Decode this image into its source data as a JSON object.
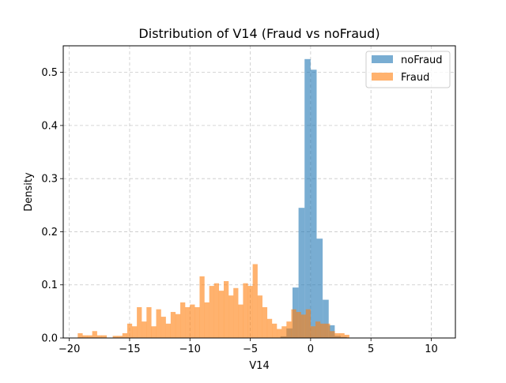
{
  "chart_data": {
    "type": "bar",
    "title": "Distribution of V14 (Fraud vs noFraud)",
    "xlabel": "V14",
    "ylabel": "Density",
    "xlim": [
      -20.5,
      12.0
    ],
    "ylim": [
      0,
      0.55
    ],
    "xticks": [
      -20,
      -15,
      -10,
      -5,
      0,
      5,
      10
    ],
    "xtick_labels": [
      "−20",
      "−15",
      "−10",
      "−5",
      "0",
      "5",
      "10"
    ],
    "yticks": [
      0.0,
      0.1,
      0.2,
      0.3,
      0.4,
      0.5
    ],
    "ytick_labels": [
      "0.0",
      "0.1",
      "0.2",
      "0.3",
      "0.4",
      "0.5"
    ],
    "grid": true,
    "legend_position": "top-right",
    "series": [
      {
        "name": "noFraud",
        "color": "#1f77b4",
        "alpha": 0.6,
        "bin_width": 0.5,
        "bins": [
          [
            -2.5,
            0.003
          ],
          [
            -2.0,
            0.018
          ],
          [
            -1.5,
            0.095
          ],
          [
            -1.0,
            0.245
          ],
          [
            -0.5,
            0.525
          ],
          [
            0.0,
            0.505
          ],
          [
            0.5,
            0.187
          ],
          [
            1.0,
            0.072
          ],
          [
            1.5,
            0.024
          ],
          [
            2.0,
            0.004
          ],
          [
            2.5,
            0.002
          ]
        ]
      },
      {
        "name": "Fraud",
        "color": "#ff7f0e",
        "alpha": 0.6,
        "bin_width": 0.41,
        "bins": [
          [
            -19.3,
            0.009
          ],
          [
            -18.9,
            0.005
          ],
          [
            -18.5,
            0.005
          ],
          [
            -18.1,
            0.013
          ],
          [
            -17.7,
            0.005
          ],
          [
            -17.3,
            0.005
          ],
          [
            -16.4,
            0.004
          ],
          [
            -16.0,
            0.004
          ],
          [
            -15.6,
            0.009
          ],
          [
            -15.2,
            0.027
          ],
          [
            -14.8,
            0.022
          ],
          [
            -14.4,
            0.058
          ],
          [
            -14.0,
            0.031
          ],
          [
            -13.6,
            0.058
          ],
          [
            -13.2,
            0.022
          ],
          [
            -12.8,
            0.054
          ],
          [
            -12.4,
            0.04
          ],
          [
            -12.0,
            0.027
          ],
          [
            -11.6,
            0.049
          ],
          [
            -11.2,
            0.045
          ],
          [
            -10.8,
            0.067
          ],
          [
            -10.4,
            0.058
          ],
          [
            -10.0,
            0.063
          ],
          [
            -9.6,
            0.058
          ],
          [
            -9.2,
            0.116
          ],
          [
            -8.8,
            0.067
          ],
          [
            -8.4,
            0.098
          ],
          [
            -8.0,
            0.103
          ],
          [
            -7.6,
            0.089
          ],
          [
            -7.2,
            0.107
          ],
          [
            -6.8,
            0.08
          ],
          [
            -6.4,
            0.094
          ],
          [
            -6.0,
            0.063
          ],
          [
            -5.6,
            0.103
          ],
          [
            -5.2,
            0.098
          ],
          [
            -4.8,
            0.139
          ],
          [
            -4.4,
            0.08
          ],
          [
            -4.0,
            0.058
          ],
          [
            -3.6,
            0.036
          ],
          [
            -3.2,
            0.027
          ],
          [
            -2.8,
            0.017
          ],
          [
            -2.4,
            0.022
          ],
          [
            -2.0,
            0.031
          ],
          [
            -1.6,
            0.054
          ],
          [
            -1.2,
            0.049
          ],
          [
            -0.8,
            0.044
          ],
          [
            -0.4,
            0.054
          ],
          [
            0.0,
            0.022
          ],
          [
            0.4,
            0.031
          ],
          [
            0.8,
            0.027
          ],
          [
            1.2,
            0.027
          ],
          [
            1.6,
            0.013
          ],
          [
            2.0,
            0.009
          ],
          [
            2.4,
            0.009
          ],
          [
            2.8,
            0.006
          ]
        ]
      }
    ]
  }
}
